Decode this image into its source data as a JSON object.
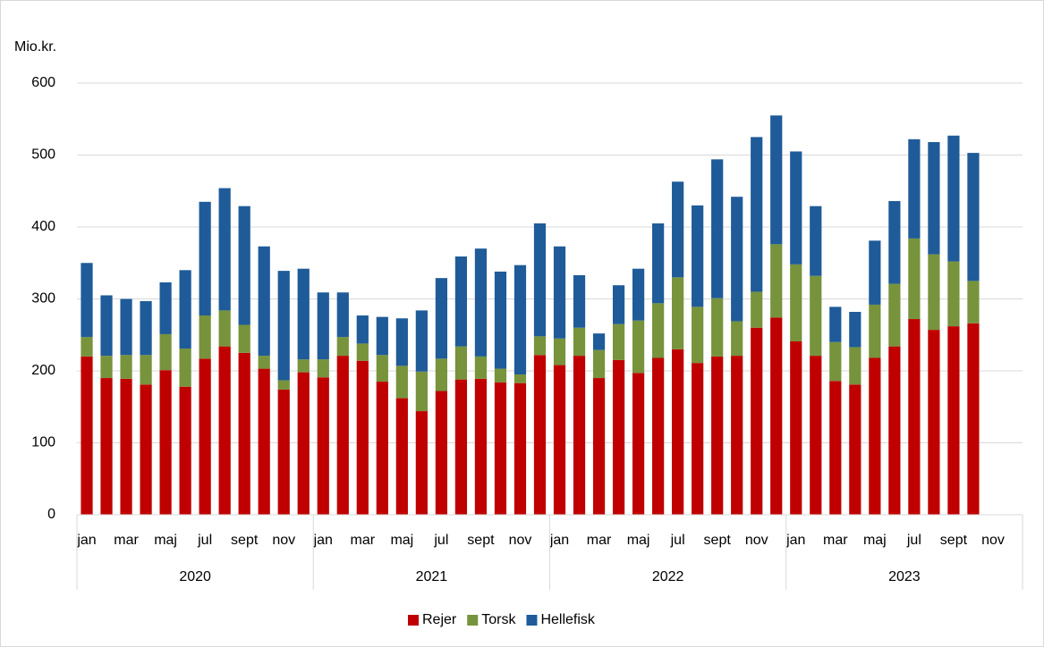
{
  "chart_data": {
    "type": "stacked_bar",
    "ylabel": "Mio.kr.",
    "categories": [
      "jan",
      null,
      "mar",
      null,
      "maj",
      null,
      "jul",
      null,
      "sept",
      null,
      "nov",
      null,
      "jan",
      null,
      "mar",
      null,
      "maj",
      null,
      "jul",
      null,
      "sept",
      null,
      "nov",
      null,
      "jan",
      null,
      "mar",
      null,
      "maj",
      null,
      "jul",
      null,
      "sept",
      null,
      "nov",
      null,
      "jan",
      null,
      "mar",
      null,
      "maj",
      null,
      "jul",
      null,
      "sept",
      null,
      "nov",
      null
    ],
    "years": [
      "2020",
      "2021",
      "2022",
      "2023"
    ],
    "series": [
      {
        "name": "Rejer",
        "color": "#c00000",
        "values": [
          220,
          190,
          189,
          181,
          201,
          178,
          217,
          234,
          225,
          203,
          174,
          198,
          191,
          221,
          214,
          185,
          162,
          144,
          172,
          188,
          189,
          184,
          183,
          222,
          208,
          221,
          190,
          215,
          197,
          218,
          230,
          211,
          220,
          221,
          260,
          274,
          241,
          221,
          186,
          181,
          218,
          234,
          272,
          257,
          262,
          266,
          null,
          null
        ]
      },
      {
        "name": "Torsk",
        "color": "#77933c",
        "values": [
          27,
          31,
          33,
          41,
          50,
          53,
          60,
          50,
          39,
          18,
          13,
          18,
          25,
          26,
          24,
          37,
          45,
          55,
          45,
          46,
          31,
          19,
          12,
          26,
          37,
          39,
          39,
          50,
          73,
          76,
          100,
          78,
          81,
          48,
          50,
          102,
          107,
          111,
          54,
          52,
          74,
          87,
          112,
          105,
          90,
          59,
          null,
          null
        ]
      },
      {
        "name": "Hellefisk",
        "color": "#1f5b99",
        "values": [
          103,
          84,
          78,
          75,
          72,
          109,
          158,
          170,
          165,
          152,
          152,
          126,
          93,
          62,
          39,
          53,
          66,
          85,
          112,
          125,
          150,
          135,
          152,
          157,
          128,
          73,
          23,
          54,
          72,
          111,
          133,
          141,
          193,
          173,
          215,
          179,
          157,
          97,
          49,
          49,
          89,
          115,
          138,
          156,
          175,
          178,
          null,
          null
        ]
      }
    ],
    "ylim": [
      0,
      600
    ],
    "yticks": [
      0,
      100,
      200,
      300,
      400,
      500,
      600
    ],
    "grid": true,
    "legend": "bottom"
  }
}
